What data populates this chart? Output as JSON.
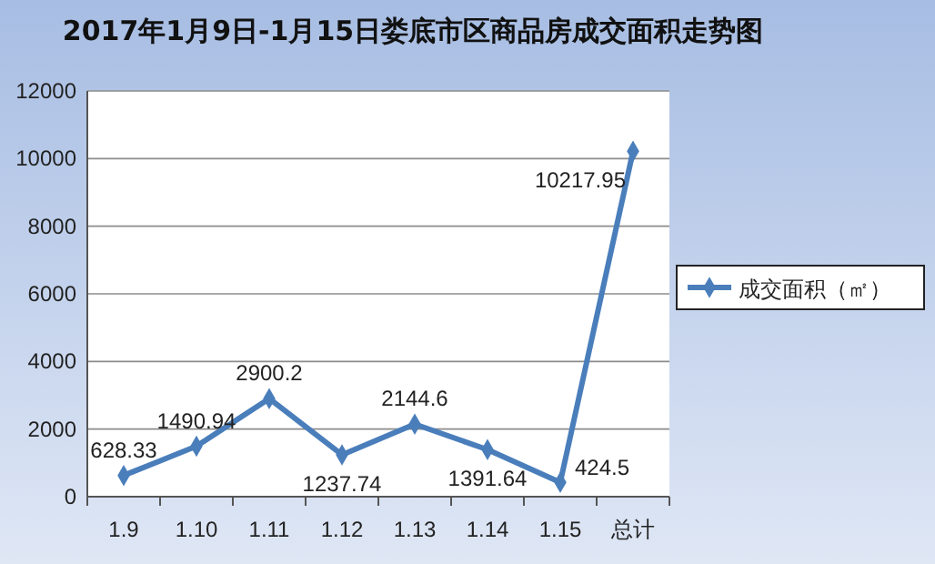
{
  "chart_data": {
    "type": "line",
    "title": "2017年1月9日-1月15日娄底市区商品房成交面积走势图",
    "categories": [
      "1.9",
      "1.10",
      "1.11",
      "1.12",
      "1.13",
      "1.14",
      "1.15",
      "总计"
    ],
    "series": [
      {
        "name": "成交面积（㎡）",
        "color": "#4a7ebb",
        "values": [
          628.33,
          1490.94,
          2900.2,
          1237.74,
          2144.6,
          1391.64,
          424.5,
          10217.95
        ]
      }
    ],
    "ylim": [
      0,
      12000
    ],
    "yticks": [
      0,
      2000,
      4000,
      6000,
      8000,
      10000,
      12000
    ],
    "grid": "y",
    "legend": "right",
    "marker": "diamond",
    "data_labels": true
  }
}
